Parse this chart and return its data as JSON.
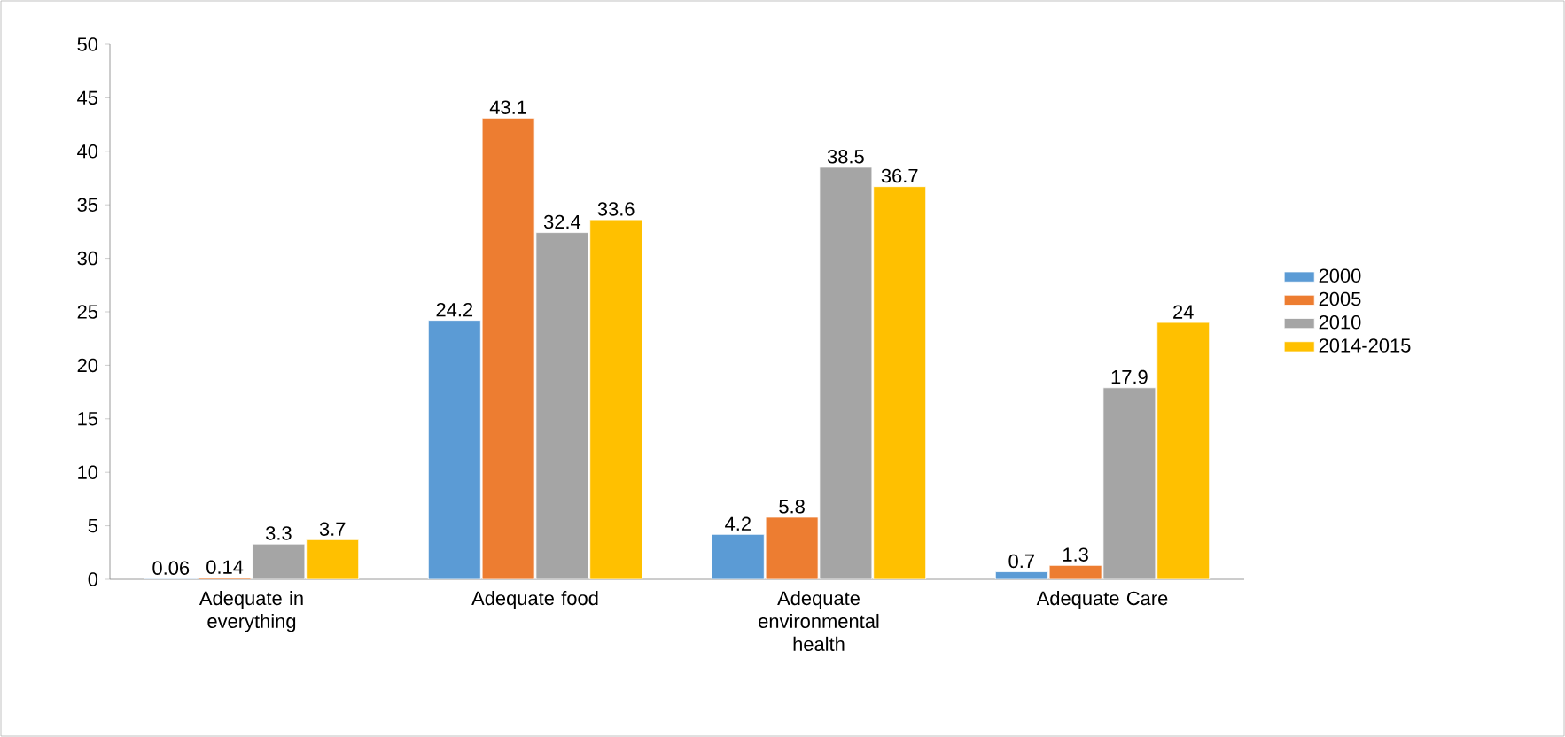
{
  "chart_data": {
    "type": "bar",
    "categories": [
      "Adequate in everything",
      "Adequate food",
      "Adequate environmental health",
      "Adequate Care"
    ],
    "series": [
      {
        "name": "2000",
        "color": "#5b9bd5",
        "values": [
          0.06,
          24.2,
          4.2,
          0.7
        ]
      },
      {
        "name": "2005",
        "color": "#ed7d31",
        "values": [
          0.14,
          43.1,
          5.8,
          1.3
        ]
      },
      {
        "name": "2010",
        "color": "#a5a5a5",
        "values": [
          3.3,
          32.4,
          38.5,
          17.9
        ]
      },
      {
        "name": "2014-2015",
        "color": "#ffc000",
        "values": [
          3.7,
          33.6,
          36.7,
          24
        ]
      }
    ],
    "ylim": [
      0,
      50
    ],
    "yticks": [
      0,
      5,
      10,
      15,
      20,
      25,
      30,
      35,
      40,
      45,
      50
    ],
    "data_labels": true,
    "legend": "right",
    "grid": false
  }
}
